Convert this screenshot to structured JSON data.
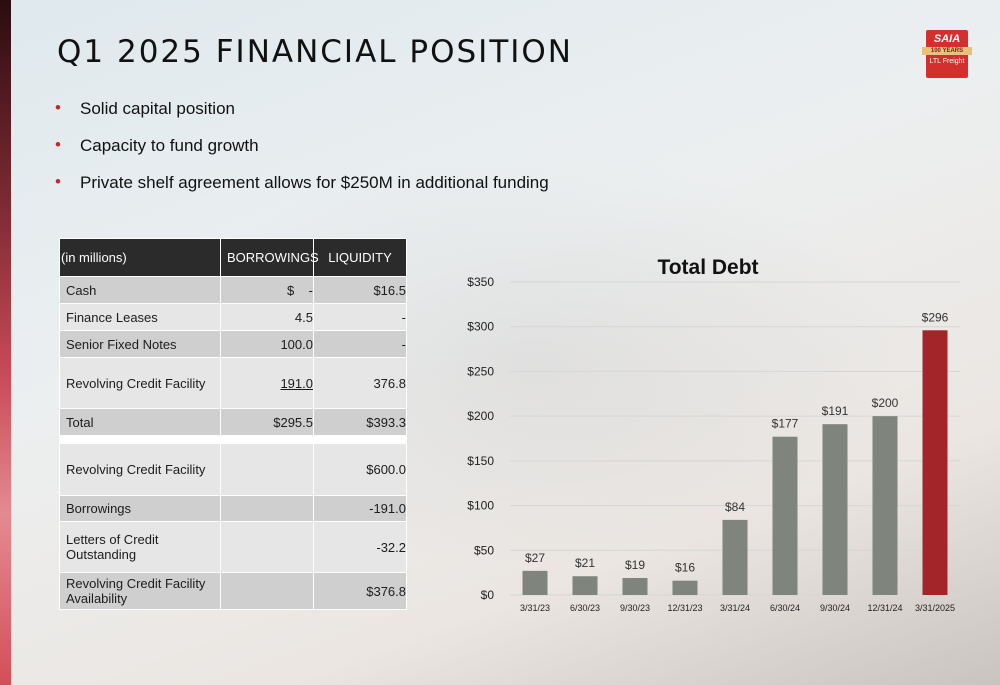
{
  "title": "Q1 2025 FINANCIAL POSITION",
  "logo": {
    "brand": "SAIA",
    "ribbon": "100 YEARS",
    "tagline": "LTL Freight"
  },
  "bullets": [
    "Solid capital position",
    "Capacity to fund growth",
    "Private shelf agreement allows for $250M in additional funding"
  ],
  "table": {
    "headers": [
      "(in millions)",
      "BORROWINGS",
      "LIQUIDITY"
    ],
    "rows": [
      {
        "label": "Cash",
        "borrowings": "$    -",
        "liquidity": "$16.5"
      },
      {
        "label": "Finance Leases",
        "borrowings": "4.5",
        "liquidity": "-"
      },
      {
        "label": "Senior Fixed Notes",
        "borrowings": "100.0",
        "liquidity": "-"
      },
      {
        "label": "Revolving Credit Facility",
        "borrowings": "191.0",
        "liquidity": "376.8"
      },
      {
        "label": "Total",
        "borrowings": "$295.5",
        "liquidity": "$393.3"
      },
      {
        "label": "Revolving Credit Facility",
        "borrowings": "",
        "liquidity": "$600.0"
      },
      {
        "label": "Borrowings",
        "borrowings": "",
        "liquidity": "-191.0"
      },
      {
        "label": "Letters of Credit Outstanding",
        "borrowings": "",
        "liquidity": "-32.2"
      },
      {
        "label": "Revolving Credit Facility Availability",
        "borrowings": "",
        "liquidity": "$376.8"
      }
    ]
  },
  "chart_data": {
    "type": "bar",
    "title": "Total Debt",
    "categories": [
      "3/31/23",
      "6/30/23",
      "9/30/23",
      "12/31/23",
      "3/31/24",
      "6/30/24",
      "9/30/24",
      "12/31/24",
      "3/31/2025"
    ],
    "values": [
      27,
      21,
      19,
      16,
      84,
      177,
      191,
      200,
      296
    ],
    "value_labels": [
      "$27",
      "$21",
      "$19",
      "$16",
      "$84",
      "$177",
      "$191",
      "$200",
      "$296"
    ],
    "ylim": [
      0,
      350
    ],
    "yticks": [
      0,
      50,
      100,
      150,
      200,
      250,
      300,
      350
    ],
    "ytick_labels": [
      "$0",
      "$50",
      "$100",
      "$150",
      "$200",
      "$250",
      "$300",
      "$350"
    ],
    "grid": true,
    "bar_color": "#7f847d",
    "highlight_color": "#a3252a",
    "highlight_index": 8
  }
}
